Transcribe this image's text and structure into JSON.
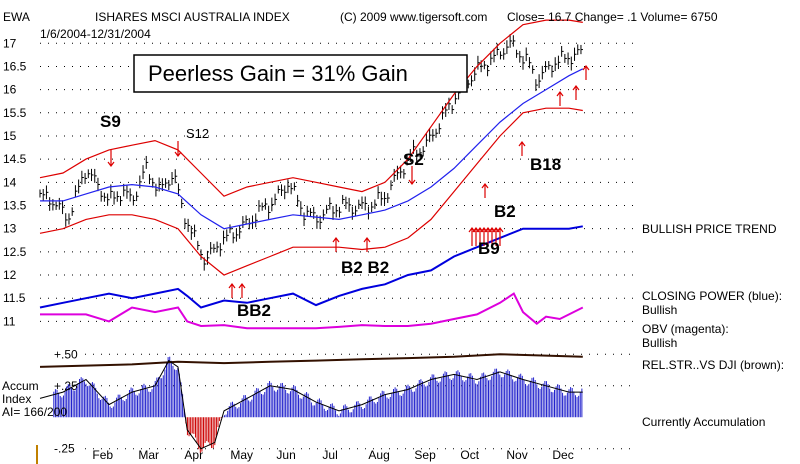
{
  "header": {
    "ticker": "EWA",
    "name": "ISHARES MSCI AUSTRALIA INDEX",
    "copyright": "(C) 2009 www.tigersoft.com",
    "quote": "Close=  16.7  Change= .1 Volume= 6750",
    "date_range": "1/6/2004-12/31/2004"
  },
  "banner": "Peerless Gain = 31% Gain",
  "signals": [
    "S9",
    "S12",
    "S2",
    "B18",
    "B2",
    "B9",
    "B2 B2",
    "BB2"
  ],
  "side_labels": {
    "trend": "BULLISH PRICE TREND",
    "cp_title": "CLOSING POWER (blue):",
    "cp_value": "Bullish",
    "obv_title": "OBV (magenta):",
    "obv_value": "Bullish",
    "rel": "REL.STR..VS DJI (brown):",
    "accum_status": "Currently Accumulation"
  },
  "accum_label": {
    "line1": "Accum",
    "line2": "Index",
    "line3": "AI= 166/200"
  },
  "colors": {
    "price": "#000000",
    "band": "#dd0000",
    "ma": "#2222ee",
    "closing_power": "#0000dd",
    "obv": "#dd00dd",
    "rel_strength": "#331100",
    "accum_pos": "#2222cc",
    "accum_neg": "#cc0000"
  },
  "chart_data": {
    "type": "line",
    "title": "ISHARES MSCI AUSTRALIA INDEX",
    "x_tick_labels": [
      "Feb",
      "Mar",
      "Apr",
      "May",
      "Jun",
      "Jul",
      "Aug",
      "Sep",
      "Oct",
      "Nov",
      "Dec"
    ],
    "y_tick_labels": [
      "17",
      "16.5",
      "16",
      "15.5",
      "15",
      "14.5",
      "14",
      "13.5",
      "13",
      "12.5",
      "12",
      "11.5",
      "11"
    ],
    "ylim": [
      10.9,
      17.2
    ],
    "accum_tick_labels": [
      "+.50",
      "+.25",
      "-.25"
    ],
    "accum_ylim": [
      -0.3,
      0.55
    ],
    "x_months": [
      0,
      1,
      2,
      3,
      4,
      5,
      6,
      7,
      8,
      9,
      10,
      11
    ],
    "series": [
      {
        "name": "EWA close",
        "x": [
          0,
          0.3,
          0.6,
          1,
          1.2,
          1.5,
          1.8,
          2,
          2.3,
          2.6,
          2.9,
          3.1,
          3.3,
          3.6,
          3.9,
          4.2,
          4.5,
          4.8,
          5.1,
          5.4,
          5.7,
          6,
          6.3,
          6.6,
          6.9,
          7.2,
          7.5,
          7.8,
          8.1,
          8.4,
          8.7,
          9,
          9.3,
          9.6,
          9.9,
          10.2,
          10.4,
          10.6,
          10.8,
          11,
          11.2,
          11.5,
          11.8
        ],
        "values": [
          13.7,
          13.6,
          13.2,
          14.3,
          14,
          13.6,
          13.8,
          13.6,
          14.3,
          13.8,
          14.2,
          13.4,
          12.9,
          12.3,
          12.7,
          12.9,
          13.1,
          13.4,
          13.6,
          14,
          13.4,
          13.2,
          13.4,
          13.5,
          13.45,
          13.5,
          13.7,
          14.2,
          14.6,
          14.8,
          15.3,
          15.8,
          16.2,
          16.5,
          16.7,
          17,
          16.8,
          16.6,
          16.2,
          16.4,
          16.6,
          16.7,
          16.8
        ]
      },
      {
        "name": "Upper band",
        "x": [
          0,
          0.5,
          1,
          1.5,
          2,
          2.5,
          3,
          3.5,
          4,
          4.5,
          5,
          5.5,
          6,
          6.5,
          7,
          7.5,
          8,
          8.5,
          9,
          9.5,
          10,
          10.5,
          11,
          11.5,
          11.8
        ],
        "values": [
          14.1,
          14.2,
          14.5,
          14.7,
          14.8,
          14.9,
          14.7,
          14.2,
          13.7,
          13.9,
          14.0,
          14.1,
          14.0,
          13.9,
          13.8,
          14.0,
          14.5,
          15.2,
          15.9,
          16.5,
          17.0,
          17.4,
          17.5,
          17.5,
          17.45
        ]
      },
      {
        "name": "Lower band",
        "x": [
          0,
          0.5,
          1,
          1.5,
          2,
          2.5,
          3,
          3.5,
          4,
          4.5,
          5,
          5.5,
          6,
          6.5,
          7,
          7.5,
          8,
          8.5,
          9,
          9.5,
          10,
          10.5,
          11,
          11.5,
          11.8
        ],
        "values": [
          12.9,
          13.0,
          13.2,
          13.3,
          13.3,
          13.2,
          13.0,
          12.4,
          12.0,
          12.2,
          12.4,
          12.6,
          12.6,
          12.6,
          12.55,
          12.6,
          12.8,
          13.2,
          13.8,
          14.4,
          15.0,
          15.5,
          15.6,
          15.6,
          15.55
        ]
      },
      {
        "name": "Moving average",
        "x": [
          0,
          0.5,
          1,
          1.5,
          2,
          2.5,
          3,
          3.5,
          4,
          4.5,
          5,
          5.5,
          6,
          6.5,
          7,
          7.5,
          8,
          8.5,
          9,
          9.5,
          10,
          10.5,
          11,
          11.5,
          11.8
        ],
        "values": [
          13.6,
          13.6,
          13.75,
          13.9,
          13.95,
          13.9,
          13.75,
          13.3,
          13.0,
          13.1,
          13.2,
          13.3,
          13.25,
          13.2,
          13.3,
          13.4,
          13.6,
          13.9,
          14.3,
          14.8,
          15.3,
          15.7,
          16.0,
          16.3,
          16.45
        ]
      },
      {
        "name": "Closing Power",
        "x": [
          0,
          0.5,
          1,
          1.5,
          2,
          2.5,
          3,
          3.2,
          3.5,
          4,
          4.5,
          5,
          5.5,
          6,
          6.5,
          7,
          7.5,
          8,
          8.5,
          9,
          9.5,
          10,
          10.5,
          11,
          11.5,
          11.8
        ],
        "values": [
          11.3,
          11.4,
          11.5,
          11.6,
          11.5,
          11.6,
          11.7,
          11.55,
          11.3,
          11.45,
          11.4,
          11.5,
          11.6,
          11.35,
          11.55,
          11.7,
          11.8,
          12.0,
          12.1,
          12.4,
          12.6,
          12.8,
          13.0,
          13.0,
          13.0,
          13.05
        ]
      },
      {
        "name": "OBV",
        "x": [
          0,
          1,
          1.5,
          2,
          2.5,
          3,
          3.2,
          3.5,
          4,
          4.5,
          5,
          5.5,
          6,
          6.5,
          7,
          7.5,
          8,
          8.5,
          9,
          9.5,
          10,
          10.3,
          10.5,
          10.8,
          11,
          11.3,
          11.8
        ],
        "values": [
          11.15,
          11.15,
          11.0,
          11.3,
          11.2,
          11.3,
          11.0,
          10.9,
          10.92,
          10.85,
          10.85,
          10.85,
          10.85,
          10.88,
          10.92,
          10.9,
          10.9,
          10.95,
          11.05,
          11.15,
          11.4,
          11.6,
          11.2,
          10.95,
          11.1,
          11.05,
          11.3
        ]
      },
      {
        "name": "Rel. Strength vs DJI",
        "x": [
          0,
          1,
          2,
          3,
          4,
          5,
          6,
          7,
          8,
          9,
          10,
          11,
          11.8
        ],
        "values": [
          0.4,
          0.41,
          0.42,
          0.44,
          0.43,
          0.44,
          0.45,
          0.46,
          0.47,
          0.48,
          0.5,
          0.49,
          0.48
        ]
      },
      {
        "name": "Accumulation Index",
        "x": [
          0,
          0.5,
          1,
          1.5,
          2,
          2.5,
          2.8,
          3,
          3.2,
          3.5,
          3.8,
          4,
          4.5,
          5,
          5.5,
          6,
          6.5,
          7,
          7.5,
          8,
          8.5,
          9,
          9.5,
          10,
          10.5,
          11,
          11.5,
          11.8
        ],
        "values": [
          0.15,
          0.2,
          0.3,
          0.1,
          0.2,
          0.25,
          0.45,
          0.4,
          -0.1,
          -0.25,
          -0.2,
          0.05,
          0.15,
          0.25,
          0.22,
          0.12,
          0.05,
          0.1,
          0.18,
          0.22,
          0.3,
          0.34,
          0.3,
          0.36,
          0.3,
          0.25,
          0.2,
          0.2
        ]
      }
    ]
  }
}
